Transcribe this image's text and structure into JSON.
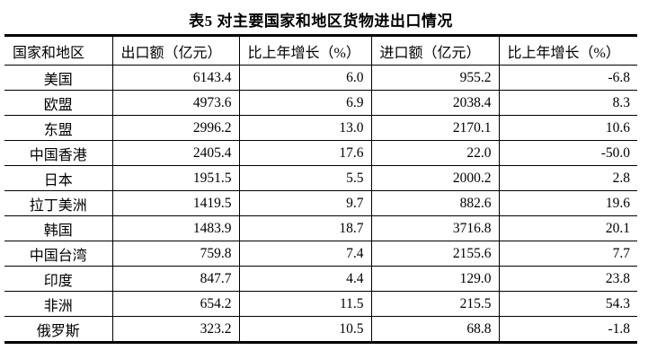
{
  "title": "表5 对主要国家和地区货物进出口情况",
  "chart_data": {
    "type": "table",
    "title": "表5 对主要国家和地区货物进出口情况",
    "columns": [
      "国家和地区",
      "出口额（亿元）",
      "比上年增长（%）",
      "进口额（亿元）",
      "比上年增长（%）"
    ],
    "rows": [
      [
        "美国",
        "6143.4",
        "6.0",
        "955.2",
        "-6.8"
      ],
      [
        "欧盟",
        "4973.6",
        "6.9",
        "2038.4",
        "8.3"
      ],
      [
        "东盟",
        "2996.2",
        "13.0",
        "2170.1",
        "10.6"
      ],
      [
        "中国香港",
        "2405.4",
        "17.6",
        "22.0",
        "-50.0"
      ],
      [
        "日本",
        "1951.5",
        "5.5",
        "2000.2",
        "2.8"
      ],
      [
        "拉丁美洲",
        "1419.5",
        "9.7",
        "882.6",
        "19.6"
      ],
      [
        "韩国",
        "1483.9",
        "18.7",
        "3716.8",
        "20.1"
      ],
      [
        "中国台湾",
        "759.8",
        "7.4",
        "2155.6",
        "7.7"
      ],
      [
        "印度",
        "847.7",
        "4.4",
        "129.0",
        "23.8"
      ],
      [
        "非洲",
        "654.2",
        "11.5",
        "215.5",
        "54.3"
      ],
      [
        "俄罗斯",
        "323.2",
        "10.5",
        "68.8",
        "-1.8"
      ]
    ],
    "layout": {
      "grid": "horizontal rules thin, thick top and bottom rules, inner vertical rules only"
    },
    "colors": {
      "text": "#000000",
      "border": "#000000",
      "background": "#ffffff"
    }
  }
}
